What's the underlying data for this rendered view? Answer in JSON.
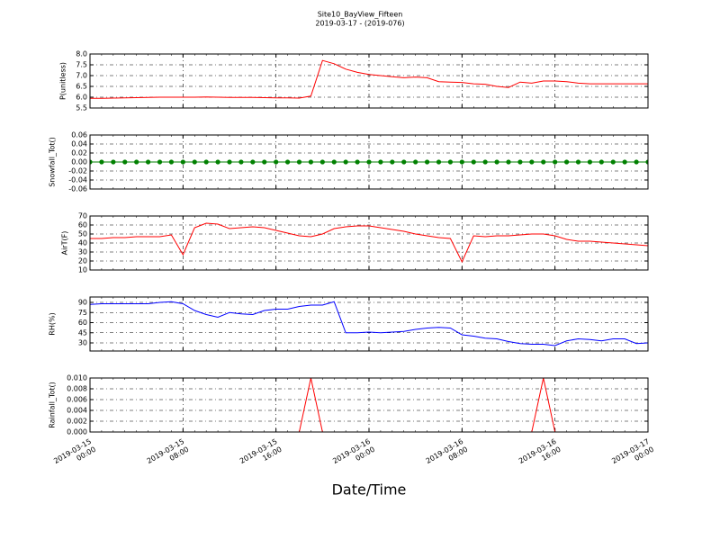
{
  "chart_data": {
    "type": "line",
    "title": "Site10_BayView_Fifteen",
    "subtitle": "2019-03-17 - (2019-076)",
    "xlabel": "Date/Time",
    "grid": true,
    "xlim": [
      "2019-03-15 00:00",
      "2019-03-17 00:00"
    ],
    "xticks": [
      "2019-03-15 00:00",
      "2019-03-15 08:00",
      "2019-03-15 16:00",
      "2019-03-16 00:00",
      "2019-03-16 08:00",
      "2019-03-16 16:00",
      "2019-03-17 00:00"
    ],
    "x": [
      "2019-03-15 00:00",
      "2019-03-15 01:00",
      "2019-03-15 02:00",
      "2019-03-15 03:00",
      "2019-03-15 04:00",
      "2019-03-15 05:00",
      "2019-03-15 06:00",
      "2019-03-15 07:00",
      "2019-03-15 08:00",
      "2019-03-15 09:00",
      "2019-03-15 10:00",
      "2019-03-15 11:00",
      "2019-03-15 12:00",
      "2019-03-15 13:00",
      "2019-03-15 14:00",
      "2019-03-15 15:00",
      "2019-03-15 16:00",
      "2019-03-15 17:00",
      "2019-03-15 18:00",
      "2019-03-15 19:00",
      "2019-03-15 20:00",
      "2019-03-15 21:00",
      "2019-03-15 22:00",
      "2019-03-15 23:00",
      "2019-03-16 00:00",
      "2019-03-16 01:00",
      "2019-03-16 02:00",
      "2019-03-16 03:00",
      "2019-03-16 04:00",
      "2019-03-16 05:00",
      "2019-03-16 06:00",
      "2019-03-16 07:00",
      "2019-03-16 08:00",
      "2019-03-16 09:00",
      "2019-03-16 10:00",
      "2019-03-16 11:00",
      "2019-03-16 12:00",
      "2019-03-16 13:00",
      "2019-03-16 14:00",
      "2019-03-16 15:00",
      "2019-03-16 16:00",
      "2019-03-16 17:00",
      "2019-03-16 18:00",
      "2019-03-16 19:00",
      "2019-03-16 20:00",
      "2019-03-16 21:00",
      "2019-03-16 22:00",
      "2019-03-16 23:00",
      "2019-03-17 00:00"
    ],
    "panels": [
      {
        "ylabel": "P(unitless)",
        "ylim": [
          5.5,
          8.0
        ],
        "style": "line",
        "yticks": [
          5.5,
          {
            "value": 6,
            "label": "6.0"
          },
          6.5,
          {
            "value": 7,
            "label": "7.0"
          },
          7.5,
          {
            "value": 8,
            "label": "8.0"
          }
        ],
        "series": [
          {
            "color": "#ff0000",
            "values": [
              5.95,
              5.95,
              5.96,
              5.97,
              5.98,
              5.99,
              6.0,
              6.0,
              6.0,
              6.0,
              6.01,
              6.0,
              5.99,
              5.99,
              5.99,
              5.98,
              5.97,
              5.97,
              5.96,
              6.05,
              7.7,
              7.55,
              7.3,
              7.15,
              7.05,
              7.0,
              6.95,
              6.9,
              6.93,
              6.9,
              6.72,
              6.7,
              6.68,
              6.62,
              6.6,
              6.5,
              6.45,
              6.7,
              6.65,
              6.75,
              6.75,
              6.72,
              6.65,
              6.62,
              6.62,
              6.62,
              6.62,
              6.62,
              6.62
            ]
          }
        ]
      },
      {
        "ylabel": "Snowfall_Tot()",
        "ylim": [
          -0.06,
          0.06
        ],
        "style": "points",
        "yticks": [
          -0.06,
          -0.04,
          -0.02,
          {
            "value": 0,
            "label": "0.00"
          },
          0.02,
          0.04,
          0.06
        ],
        "series": [
          {
            "color": "#008000",
            "values": [
              0,
              0,
              0,
              0,
              0,
              0,
              0,
              0,
              0,
              0,
              0,
              0,
              0,
              0,
              0,
              0,
              0,
              0,
              0,
              0,
              0,
              0,
              0,
              0,
              0,
              0,
              0,
              0,
              0,
              0,
              0,
              0,
              0,
              0,
              0,
              0,
              0,
              0,
              0,
              0,
              0,
              0,
              0,
              0,
              0,
              0,
              0,
              0,
              0
            ]
          }
        ]
      },
      {
        "ylabel": "AirT(F)",
        "ylim": [
          10,
          70
        ],
        "style": "line",
        "yticks": [
          10,
          20,
          30,
          40,
          50,
          60,
          70
        ],
        "series": [
          {
            "color": "#ff0000",
            "values": [
              45,
              45,
              46,
              46,
              47,
              47,
              47,
              49,
              27,
              57,
              62,
              61,
              56,
              57,
              58,
              57,
              54,
              51,
              48,
              47,
              50,
              56,
              58,
              59,
              59,
              57,
              55,
              53,
              50,
              48,
              46,
              45,
              19,
              48,
              47,
              48,
              48,
              49,
              50,
              50,
              48,
              44,
              42,
              42,
              41,
              40,
              39,
              38,
              37
            ]
          }
        ]
      },
      {
        "ylabel": "RH(%)",
        "ylim": [
          18,
          98
        ],
        "style": "line",
        "yticks": [
          30,
          45,
          60,
          75,
          90
        ],
        "series": [
          {
            "color": "#0000ff",
            "values": [
              87,
              88,
              88,
              88,
              88,
              88,
              90,
              91,
              88,
              78,
              72,
              68,
              75,
              73,
              72,
              78,
              80,
              80,
              84,
              86,
              86,
              91,
              45,
              45,
              46,
              45,
              46,
              47,
              50,
              52,
              53,
              52,
              42,
              40,
              37,
              36,
              32,
              29,
              28,
              28,
              26,
              33,
              36,
              35,
              33,
              36,
              36,
              29,
              30
            ]
          }
        ]
      },
      {
        "ylabel": "Rainfall_Tot()",
        "ylim": [
          0,
          0.01
        ],
        "style": "line",
        "yticks": [
          {
            "value": 0,
            "label": "0.000"
          },
          0.002,
          0.004,
          0.006,
          0.008,
          {
            "value": 0.01,
            "label": "0.010"
          }
        ],
        "series": [
          {
            "color": "#ff0000",
            "values": [
              0,
              0,
              0,
              0,
              0,
              0,
              0,
              0,
              0,
              0,
              0,
              0,
              0,
              0,
              0,
              0,
              0,
              0,
              0,
              0.01,
              0,
              0,
              0,
              0,
              0,
              0,
              0,
              0,
              0,
              0,
              0,
              0,
              0,
              0,
              0,
              0,
              0,
              0,
              0,
              0.01,
              0,
              0,
              0,
              0,
              0,
              0,
              0,
              0,
              0
            ]
          }
        ]
      }
    ]
  }
}
